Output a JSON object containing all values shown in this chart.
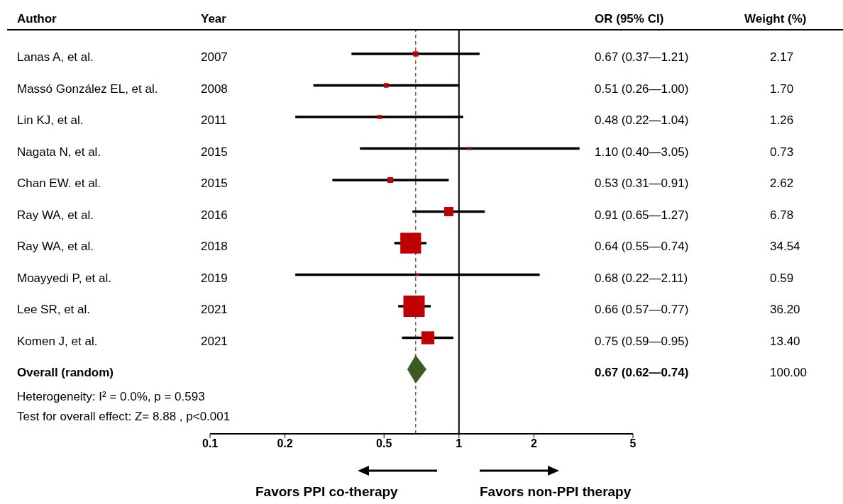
{
  "chart_data": {
    "type": "scatter",
    "orientation": "horizontal",
    "log": "x",
    "ylabel": "Author",
    "categories": [
      "Lanas A, et al.",
      "Massó González EL, et al.",
      "Lin KJ, et al.",
      "Nagata N, et al.",
      "Chan EW. et al.",
      "Ray WA, et al.",
      "Ray WA, et al.",
      "Moayyedi P, et al.",
      "Lee SR, et al.",
      "Komen J, et al.",
      "Overall (random)"
    ],
    "series": [
      {
        "marker": "square",
        "color": "#c00000",
        "values": [
          0.67,
          0.51,
          0.48,
          1.1,
          0.53,
          0.91,
          0.64,
          0.68,
          0.66,
          0.75,
          null
        ],
        "errors": [
          [
            0.37,
            1.21
          ],
          [
            0.26,
            1.0
          ],
          [
            0.22,
            1.04
          ],
          [
            0.4,
            3.05
          ],
          [
            0.31,
            0.91
          ],
          [
            0.65,
            1.27
          ],
          [
            0.55,
            0.74
          ],
          [
            0.22,
            2.11
          ],
          [
            0.57,
            0.77
          ],
          [
            0.59,
            0.95
          ],
          null
        ],
        "sizes": [
          0.06,
          0.047,
          0.035,
          0.02,
          0.072,
          0.187,
          0.954,
          0.016,
          1,
          0.37,
          null
        ],
        "value_labels": [
          "0.67 (0.37—1.21)",
          "0.51 (0.26—1.00)",
          "0.48 (0.22—1.04)",
          "1.10 (0.40—3.05)",
          "0.53 (0.31—0.91)",
          "0.91 (0.65—1.27)",
          "0.64 (0.55—0.74)",
          "0.68 (0.22—2.11)",
          "0.66 (0.57—0.77)",
          "0.75 (0.59—0.95)",
          null
        ]
      },
      {
        "marker": "diamond",
        "color": "#3d5a25",
        "values": [
          null,
          null,
          null,
          null,
          null,
          null,
          null,
          null,
          null,
          null,
          0.67
        ],
        "errors": [
          null,
          null,
          null,
          null,
          null,
          null,
          null,
          null,
          null,
          null,
          [
            0.62,
            0.74
          ]
        ]
      }
    ],
    "xlim": [
      0.1,
      5
    ],
    "xticks": [
      0.1,
      0.2,
      0.5,
      1,
      2,
      5
    ],
    "ref_lines": [
      {
        "axis": "x",
        "value": 1,
        "color": "#000000",
        "line_style": "solid"
      },
      {
        "axis": "x",
        "value": 0.67,
        "color": "#8b3a3a",
        "line_style": "dashed"
      }
    ],
    "annotations": [
      "Year",
      "OR (95% CI)",
      "Weight (%)",
      "2007",
      "2008",
      "2011",
      "2015",
      "2015",
      "2016",
      "2018",
      "2019",
      "2021",
      "2021",
      "2.17",
      "1.70",
      "1.26",
      "0.73",
      "2.62",
      "6.78",
      "34.54",
      "0.59",
      "36.20",
      "13.40",
      "100.00",
      "Heterogeneity: I² = 0.0%, p = 0.593",
      "Test for overall effect:  Z= 8.88 , p<0.001",
      "Favors PPI co-therapy",
      "Favors non-PPI therapy",
      "0.67 (0.62—0.74)"
    ]
  }
}
